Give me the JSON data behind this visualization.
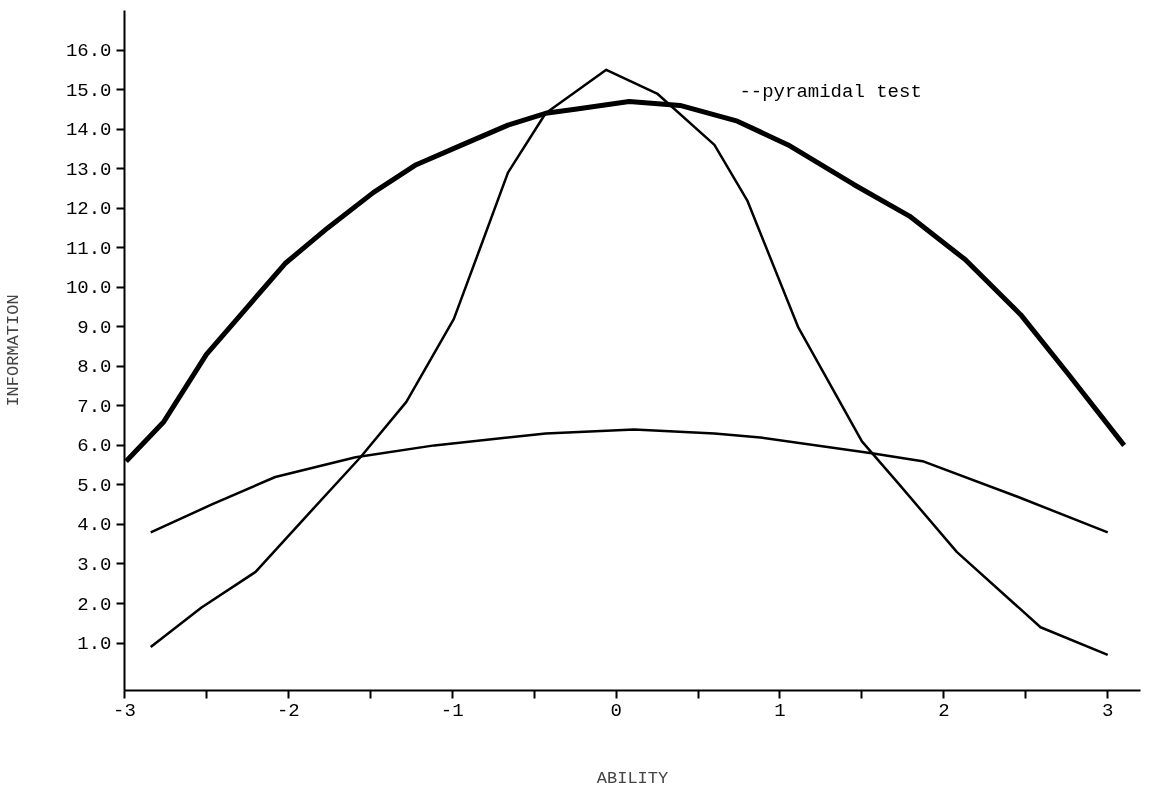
{
  "chart_data": {
    "type": "line",
    "xlabel": "ABILITY",
    "ylabel": "INFORMATION",
    "xlim": [
      -3,
      3.2
    ],
    "ylim": [
      -0.2,
      17
    ],
    "xticks": [
      -3,
      {
        "value": -2.5,
        "label": null
      },
      -2,
      {
        "value": -1.5,
        "label": null
      },
      -1,
      {
        "value": -0.5,
        "label": null
      },
      0,
      {
        "value": 0.5,
        "label": null
      },
      1,
      {
        "value": 1.5,
        "label": null
      },
      2,
      {
        "value": 2.5,
        "label": null
      },
      3
    ],
    "yticks": [
      {
        "value": 1,
        "label": "1.0"
      },
      {
        "value": 2,
        "label": "2.0"
      },
      {
        "value": 3,
        "label": "3.0"
      },
      {
        "value": 4,
        "label": "4.0"
      },
      {
        "value": 5,
        "label": "5.0"
      },
      {
        "value": 6,
        "label": "6.0"
      },
      {
        "value": 7,
        "label": "7.0"
      },
      {
        "value": 8,
        "label": "8.0"
      },
      {
        "value": 9,
        "label": "9.0"
      },
      {
        "value": 10,
        "label": "10.0"
      },
      {
        "value": 11,
        "label": "11.0"
      },
      {
        "value": 12,
        "label": "12.0"
      },
      {
        "value": 13,
        "label": "13.0"
      },
      {
        "value": 14,
        "label": "14.0"
      },
      {
        "value": 15,
        "label": "15.0"
      },
      {
        "value": 16,
        "label": "16.0"
      }
    ],
    "grid": false,
    "marker": "none",
    "line_style": "solid",
    "series": [
      {
        "name": "--pyramidal test",
        "color": "#000000",
        "x": [
          -2.99,
          -2.76,
          -2.5,
          -2.25,
          -2.02,
          -1.76,
          -1.48,
          -1.22,
          -0.94,
          -0.66,
          -0.43,
          -0.25,
          0.08,
          0.39,
          0.74,
          1.05,
          1.45,
          1.79,
          2.13,
          2.47,
          2.76,
          3.1
        ],
        "values": [
          5.6,
          6.6,
          8.3,
          9.5,
          10.6,
          11.5,
          12.4,
          13.1,
          13.6,
          14.1,
          14.4,
          14.5,
          14.7,
          14.6,
          14.2,
          13.6,
          12.6,
          11.8,
          10.7,
          9.3,
          7.8,
          6.0
        ]
      },
      {
        "color": "#000000",
        "x": [
          -2.84,
          -2.53,
          -2.2,
          -1.87,
          -1.56,
          -1.28,
          -0.99,
          -0.82,
          -0.66,
          -0.43,
          -0.06,
          0.25,
          0.6,
          0.8,
          1.11,
          1.5,
          1.73,
          2.08,
          2.59,
          3.0
        ],
        "values": [
          0.9,
          1.9,
          2.8,
          4.3,
          5.7,
          7.1,
          9.2,
          11.1,
          12.9,
          14.4,
          15.5,
          14.9,
          13.6,
          12.2,
          9.0,
          6.1,
          5.0,
          3.3,
          1.4,
          0.7
        ]
      },
      {
        "color": "#000000",
        "x": [
          -2.84,
          -2.47,
          -2.08,
          -1.59,
          -1.11,
          -0.43,
          0.11,
          0.6,
          0.88,
          1.56,
          1.87,
          2.45,
          3.0
        ],
        "values": [
          3.8,
          4.5,
          5.2,
          5.7,
          6.0,
          6.3,
          6.4,
          6.3,
          6.2,
          5.8,
          5.6,
          4.7,
          3.8
        ]
      }
    ]
  }
}
